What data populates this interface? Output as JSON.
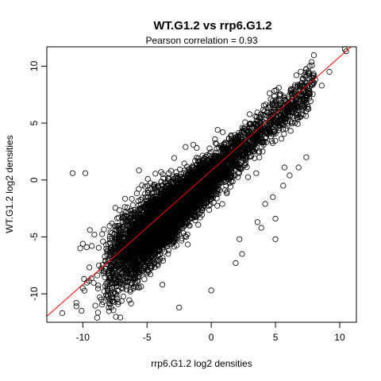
{
  "chart_data": {
    "type": "scatter",
    "title": "WT.G1.2 vs rrp6.G1.2",
    "subtitle": "Pearson correlation =  0.93",
    "xlabel": "rrp6.G1.2 log2 densities",
    "ylabel": "WT.G1.2 log2 densities",
    "xlim": [
      -12.8,
      11.3
    ],
    "ylim": [
      -12.5,
      11.7
    ],
    "xticks": [
      -10,
      -5,
      0,
      5,
      10
    ],
    "yticks": [
      -10,
      -5,
      0,
      5,
      10
    ],
    "grid": false,
    "legend": "none",
    "point_color": "#000000",
    "fit_line_color": "#ff0000",
    "fit_line": {
      "slope": 1.0,
      "intercept": 0.82
    },
    "dense_trend": {
      "slope": 1.0,
      "intercept": 0.3
    },
    "notable_points": [
      {
        "x": -11.6,
        "y": -11.7
      },
      {
        "x": -10.5,
        "y": -11.1
      },
      {
        "x": -10.5,
        "y": -10.8
      },
      {
        "x": -10.0,
        "y": -9.5
      },
      {
        "x": -9.9,
        "y": -8.7
      },
      {
        "x": -10.2,
        "y": -6.0
      },
      {
        "x": -9.7,
        "y": -5.9
      },
      {
        "x": -10.0,
        "y": -5.6
      },
      {
        "x": -10.8,
        "y": 0.6
      },
      {
        "x": -9.8,
        "y": 0.6
      },
      {
        "x": -9.1,
        "y": -4.8
      },
      {
        "x": -9.3,
        "y": -5.8
      },
      {
        "x": -8.1,
        "y": -9.5
      },
      {
        "x": -6.3,
        "y": -9.8
      },
      {
        "x": -6.3,
        "y": -2.7
      },
      {
        "x": -5.1,
        "y": -1.5
      },
      {
        "x": -4.9,
        "y": -0.9
      },
      {
        "x": -4.4,
        "y": -0.4
      },
      {
        "x": -3.9,
        "y": 0.7
      },
      {
        "x": -3.3,
        "y": 0.6
      },
      {
        "x": -2.0,
        "y": 2.9
      },
      {
        "x": -1.4,
        "y": 3.1
      },
      {
        "x": 0.0,
        "y": -9.7
      },
      {
        "x": 1.9,
        "y": -7.3
      },
      {
        "x": 2.2,
        "y": -5.2
      },
      {
        "x": 2.4,
        "y": -6.5
      },
      {
        "x": 3.6,
        "y": -3.7
      },
      {
        "x": 3.9,
        "y": -4.2
      },
      {
        "x": 4.2,
        "y": -2.1
      },
      {
        "x": 4.8,
        "y": -1.5
      },
      {
        "x": 5.0,
        "y": -3.4
      },
      {
        "x": 5.6,
        "y": -0.5
      },
      {
        "x": 5.7,
        "y": 1.1
      },
      {
        "x": 5.0,
        "y": -5.2
      },
      {
        "x": 6.1,
        "y": 0.4
      },
      {
        "x": 6.8,
        "y": 1.1
      },
      {
        "x": 7.4,
        "y": 2.0
      },
      {
        "x": 3.5,
        "y": 0.6
      },
      {
        "x": 4.9,
        "y": 6.0
      },
      {
        "x": 6.1,
        "y": 7.5
      },
      {
        "x": 7.2,
        "y": 7.8
      },
      {
        "x": 8.1,
        "y": 8.8
      },
      {
        "x": 8.6,
        "y": 8.3
      },
      {
        "x": 9.2,
        "y": 9.5
      },
      {
        "x": 10.5,
        "y": 11.3
      },
      {
        "x": 10.4,
        "y": 11.5
      },
      {
        "x": -2.5,
        "y": -11.2
      },
      {
        "x": -3.8,
        "y": -9.2
      },
      {
        "x": -7.6,
        "y": -7.9
      },
      {
        "x": -8.4,
        "y": -8.2
      }
    ],
    "approx_point_count": 6000
  }
}
